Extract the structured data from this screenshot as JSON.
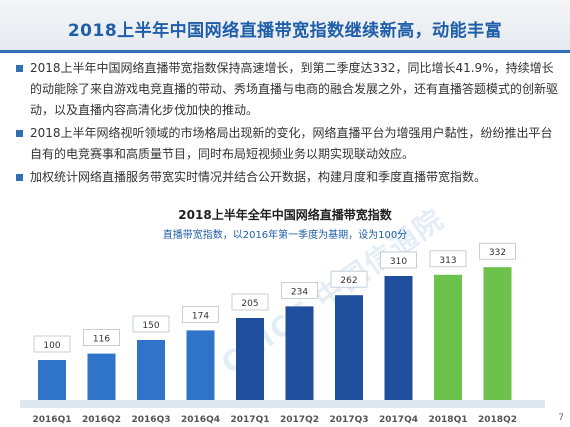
{
  "header": {
    "title": "2018上半年中国网络直播带宽指数继续新高，动能丰富"
  },
  "bullets": [
    "2018上半年中国网络直播带宽指数保持高速增长，到第二季度达332，同比增长41.9%，持续增长的动能除了来自游戏电竞直播的带动、秀场直播与电商的融合发展之外，还有直播答题模式的创新驱动，以及直播内容高清化步伐加快的推动。",
    "2018上半年网络视听领域的市场格局出现新的变化，网络直播平台为增强用户黏性，纷纷推出平台自有的电竞赛事和高质量节目，同时布局短视频业务以期实现联动效应。",
    "加权统计网络直播服务带宽实时情况并结合公开数据，构建月度和季度直播带宽指数。"
  ],
  "watermark": "CAICT 中国信通院",
  "page_number": "7",
  "colors": {
    "dark_blue": "#1f4f9c",
    "mid_blue": "#2f74c8",
    "green": "#6cc24a",
    "accent": "#2f6fb5"
  },
  "chart_data": {
    "type": "bar",
    "title": "2018上半年全年中国网络直播带宽指数",
    "subtitle": "直播带宽指数，以2016年第一季度为基期，设为100分",
    "categories": [
      "2016Q1",
      "2016Q2",
      "2016Q3",
      "2016Q4",
      "2017Q1",
      "2017Q2",
      "2017Q3",
      "2017Q4",
      "2018Q1",
      "2018Q2"
    ],
    "values": [
      100,
      116,
      150,
      174,
      205,
      234,
      262,
      310,
      313,
      332
    ],
    "bar_colors": [
      "#2f74c8",
      "#2f74c8",
      "#2f74c8",
      "#2f74c8",
      "#1f4f9c",
      "#1f4f9c",
      "#1f4f9c",
      "#1f4f9c",
      "#6cc24a",
      "#6cc24a"
    ],
    "ylim": [
      0,
      350
    ],
    "grid": false,
    "legend": "none"
  }
}
